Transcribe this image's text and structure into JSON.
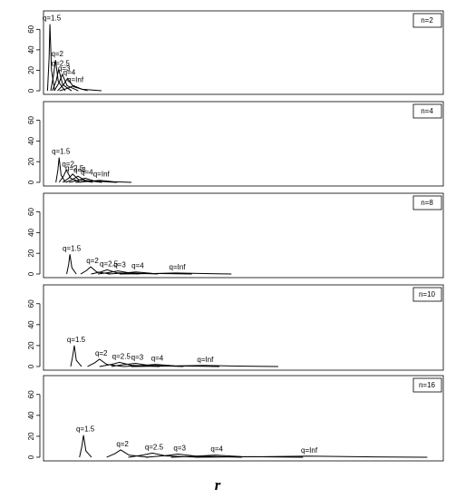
{
  "chart_data": [
    {
      "type": "line",
      "title": "n=2",
      "color": "#000000",
      "xlim": [
        0,
        100
      ],
      "ylim": [
        -3.5,
        78
      ],
      "yticks": [
        0,
        20,
        40,
        60
      ],
      "series": [
        {
          "name": "q=1.5",
          "x": [
            1.0,
            1.4,
            1.6,
            2.0,
            2.8
          ],
          "values": [
            0,
            32,
            65,
            20,
            0
          ]
        },
        {
          "name": "q=2",
          "x": [
            1.8,
            2.5,
            3.0,
            3.7,
            5.4
          ],
          "values": [
            0,
            15,
            30,
            9,
            0
          ]
        },
        {
          "name": "q=2.5",
          "x": [
            2.2,
            3.2,
            3.8,
            4.8,
            7.0
          ],
          "values": [
            0,
            10,
            21,
            6,
            0
          ]
        },
        {
          "name": "q=3",
          "x": [
            2.7,
            3.9,
            4.7,
            5.9,
            8.7
          ],
          "values": [
            0,
            8,
            16,
            5,
            0
          ]
        },
        {
          "name": "q=4",
          "x": [
            3.5,
            5.0,
            6.0,
            7.5,
            11.0
          ],
          "values": [
            0,
            6,
            12,
            4,
            0
          ]
        },
        {
          "name": "q=Inf",
          "x": [
            4.0,
            6.1,
            7.5,
            9.6,
            14.5
          ],
          "values": [
            0,
            2.5,
            5,
            1.5,
            0
          ]
        }
      ]
    },
    {
      "type": "line",
      "title": "n=4",
      "color": "#000000",
      "xlim": [
        0,
        100
      ],
      "ylim": [
        -3.5,
        78
      ],
      "yticks": [
        0,
        20,
        40,
        60
      ],
      "series": [
        {
          "name": "q=1.5",
          "x": [
            3.1,
            3.6,
            3.9,
            4.4,
            5.5
          ],
          "values": [
            0,
            12,
            24,
            7,
            0
          ]
        },
        {
          "name": "q=2",
          "x": [
            3.9,
            5.0,
            5.7,
            6.8,
            9.3
          ],
          "values": [
            0,
            6,
            12,
            4,
            0
          ]
        },
        {
          "name": "q=2.5",
          "x": [
            4.8,
            6.3,
            7.3,
            8.8,
            12.3
          ],
          "values": [
            0,
            4,
            8,
            2.5,
            0
          ]
        },
        {
          "name": "q=3",
          "x": [
            5.6,
            7.4,
            8.6,
            10.4,
            14.6
          ],
          "values": [
            0,
            3,
            6,
            2,
            0
          ]
        },
        {
          "name": "q=4",
          "x": [
            6.4,
            8.8,
            10.4,
            12.8,
            18.4
          ],
          "values": [
            0,
            2,
            4,
            1.2,
            0
          ]
        },
        {
          "name": "q=Inf",
          "x": [
            8.0,
            11.6,
            14.0,
            17.6,
            22.0
          ],
          "values": [
            0,
            1,
            2,
            0.6,
            0
          ]
        }
      ]
    },
    {
      "type": "line",
      "title": "n=8",
      "color": "#000000",
      "xlim": [
        0,
        100
      ],
      "ylim": [
        -3.5,
        78
      ],
      "yticks": [
        0,
        20,
        40,
        60
      ],
      "series": [
        {
          "name": "q=1.5",
          "x": [
            5.8,
            6.3,
            6.6,
            7.1,
            8.2
          ],
          "values": [
            0,
            9.5,
            19,
            6,
            0
          ]
        },
        {
          "name": "q=2",
          "x": [
            9.3,
            10.8,
            11.8,
            13.3,
            16.8
          ],
          "values": [
            0,
            3.5,
            7,
            2,
            0
          ]
        },
        {
          "name": "q=2.5",
          "x": [
            11.9,
            14.3,
            15.9,
            18.3,
            23.9
          ],
          "values": [
            0,
            2,
            4,
            1.2,
            0
          ]
        },
        {
          "name": "q=3",
          "x": [
            13.6,
            16.6,
            18.6,
            21.6,
            28.6
          ],
          "values": [
            0,
            1.5,
            3,
            1,
            0
          ]
        },
        {
          "name": "q=4",
          "x": [
            16.1,
            20.3,
            23.1,
            27.3,
            37.1
          ],
          "values": [
            0,
            1,
            2,
            0.6,
            0
          ]
        },
        {
          "name": "q=Inf",
          "x": [
            19,
            27.4,
            33,
            41.4,
            47
          ],
          "values": [
            0,
            0.5,
            1,
            0.3,
            0
          ]
        }
      ]
    },
    {
      "type": "line",
      "title": "n=10",
      "color": "#000000",
      "xlim": [
        0,
        100
      ],
      "ylim": [
        -3.5,
        78
      ],
      "yticks": [
        0,
        20,
        40,
        60
      ],
      "series": [
        {
          "name": "q=1.5",
          "x": [
            6.8,
            7.3,
            7.7,
            8.2,
            9.5
          ],
          "values": [
            0,
            10,
            20,
            6,
            0
          ]
        },
        {
          "name": "q=2",
          "x": [
            11,
            12.8,
            14,
            15.8,
            20
          ],
          "values": [
            0,
            3.5,
            7,
            2,
            0
          ]
        },
        {
          "name": "q=2.5",
          "x": [
            14,
            17,
            19,
            22,
            29
          ],
          "values": [
            0,
            2,
            4,
            1.2,
            0
          ]
        },
        {
          "name": "q=3",
          "x": [
            17,
            19.4,
            23,
            26.6,
            35
          ],
          "values": [
            0,
            1.5,
            3,
            1,
            0
          ]
        },
        {
          "name": "q=4",
          "x": [
            20,
            24.8,
            28,
            32.8,
            44
          ],
          "values": [
            0,
            1,
            2,
            0.6,
            0
          ]
        },
        {
          "name": "q=Inf",
          "x": [
            22,
            32.8,
            40,
            50.8,
            58.7
          ],
          "values": [
            0,
            0.5,
            1,
            0.3,
            0
          ]
        }
      ]
    },
    {
      "type": "line",
      "title": "n=16",
      "color": "#000000",
      "xlim": [
        0,
        100
      ],
      "ylim": [
        -3.5,
        78
      ],
      "yticks": [
        0,
        20,
        40,
        60
      ],
      "xlabel": "r",
      "series": [
        {
          "name": "q=1.5",
          "x": [
            9,
            9.6,
            10,
            10.6,
            12
          ],
          "values": [
            0,
            10.5,
            21,
            6,
            0
          ]
        },
        {
          "name": "q=2",
          "x": [
            15.8,
            17.9,
            19.3,
            21.4,
            26.3
          ],
          "values": [
            0,
            3.5,
            7,
            2,
            0
          ]
        },
        {
          "name": "q=2.5",
          "x": [
            21.2,
            24.8,
            27.2,
            30.8,
            39.2
          ],
          "values": [
            0,
            2,
            4,
            1.2,
            0
          ]
        },
        {
          "name": "q=3",
          "x": [
            25.6,
            30.4,
            33.6,
            38.4,
            49.6
          ],
          "values": [
            0,
            1.5,
            3,
            1,
            0
          ]
        },
        {
          "name": "q=4",
          "x": [
            31.9,
            38.5,
            42.9,
            49.5,
            64.9
          ],
          "values": [
            0,
            1,
            2,
            0.6,
            0
          ]
        },
        {
          "name": "q=Inf",
          "x": [
            38,
            54.8,
            66,
            82.8,
            96
          ],
          "values": [
            0,
            0.5,
            1,
            0.3,
            0
          ]
        }
      ]
    }
  ]
}
